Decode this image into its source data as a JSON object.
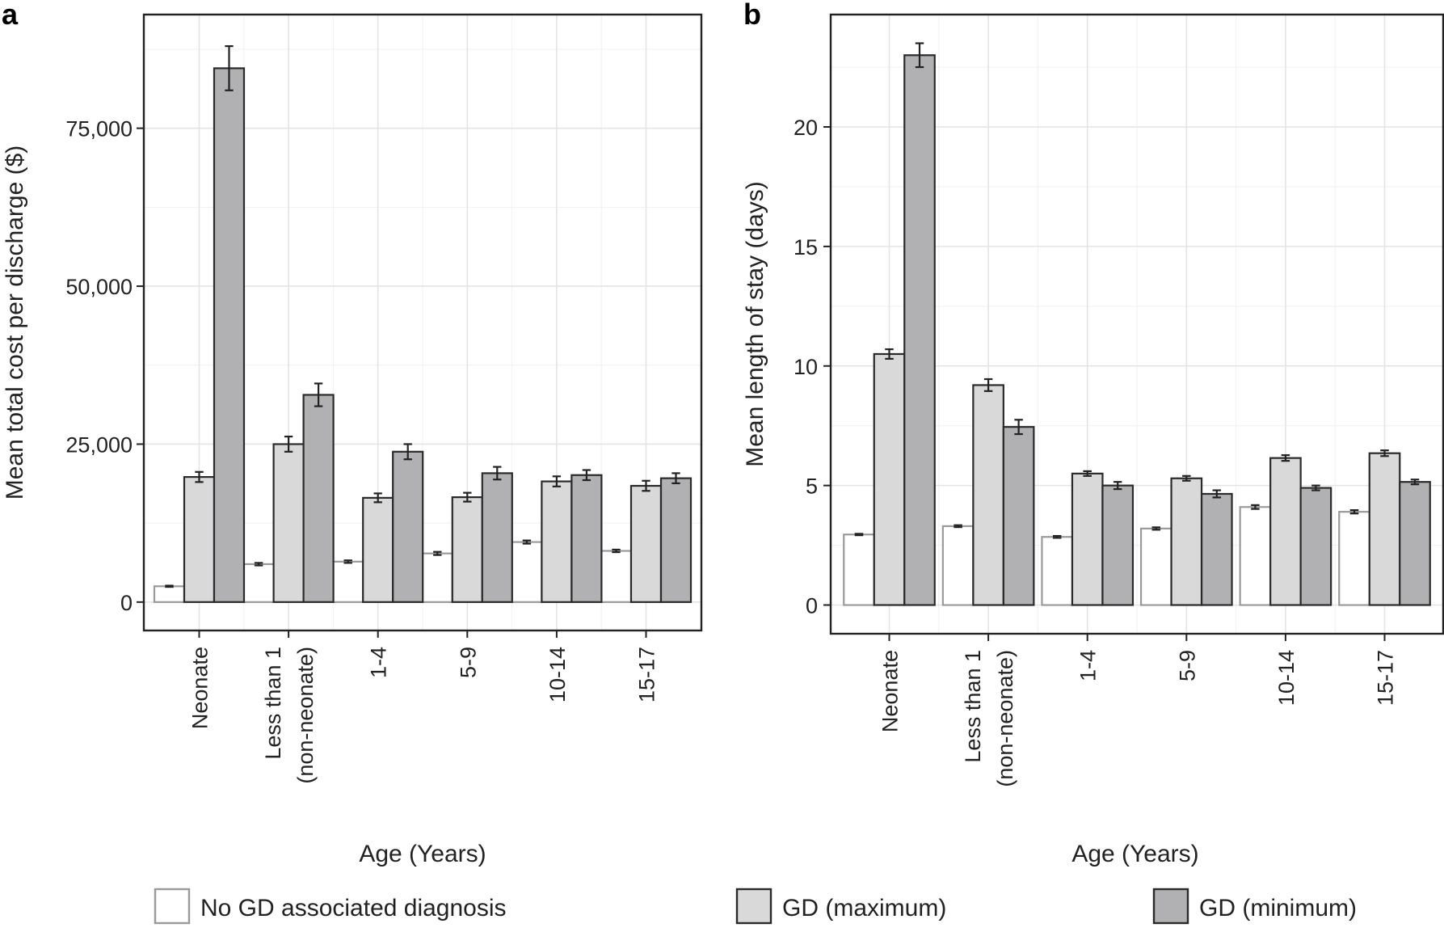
{
  "legend": {
    "items": [
      {
        "label": "No GD associated diagnosis",
        "fill": "#ffffff",
        "stroke": "#9a9a9a"
      },
      {
        "label": "GD (maximum)",
        "fill": "#d9d9da",
        "stroke": "#2a2a2a"
      },
      {
        "label": "GD (minimum)",
        "fill": "#b1b1b4",
        "stroke": "#2a2a2a"
      }
    ]
  },
  "chart_data": [
    {
      "panel": "a",
      "type": "bar",
      "title": "",
      "xlabel": "Age (Years)",
      "ylabel": "Mean total cost per discharge ($)",
      "categories": [
        [
          "Neonate"
        ],
        [
          "Less than 1",
          "(non-neonate)"
        ],
        [
          "1-4"
        ],
        [
          "5-9"
        ],
        [
          "10-14"
        ],
        [
          "15-17"
        ]
      ],
      "ylim": [
        -4500,
        93000
      ],
      "yticks": [
        0,
        25000,
        50000,
        75000
      ],
      "ytick_labels": [
        "0",
        "25,000",
        "50,000",
        "75,000"
      ],
      "series": [
        {
          "name": "No GD associated diagnosis",
          "values": [
            2500,
            6000,
            6400,
            7700,
            9500,
            8100
          ],
          "errors": [
            100,
            200,
            200,
            250,
            250,
            200
          ]
        },
        {
          "name": "GD (maximum)",
          "values": [
            19800,
            25000,
            16500,
            16600,
            19100,
            18400
          ],
          "errors": [
            800,
            1200,
            700,
            700,
            800,
            800
          ]
        },
        {
          "name": "GD (minimum)",
          "values": [
            84500,
            32800,
            23800,
            20400,
            20100,
            19600
          ],
          "errors": [
            3500,
            1800,
            1200,
            1000,
            800,
            800
          ]
        }
      ]
    },
    {
      "panel": "b",
      "type": "bar",
      "title": "",
      "xlabel": "Age (Years)",
      "ylabel": "Mean length of stay (days)",
      "categories": [
        [
          "Neonate"
        ],
        [
          "Less than 1",
          "(non-neonate)"
        ],
        [
          "1-4"
        ],
        [
          "5-9"
        ],
        [
          "10-14"
        ],
        [
          "15-17"
        ]
      ],
      "ylim": [
        -1.2,
        24.7
      ],
      "yticks": [
        0,
        5,
        10,
        15,
        20
      ],
      "ytick_labels": [
        "0",
        "5",
        "10",
        "15",
        "20"
      ],
      "series": [
        {
          "name": "No GD associated diagnosis",
          "values": [
            2.95,
            3.3,
            2.85,
            3.2,
            4.1,
            3.9
          ],
          "errors": [
            0.03,
            0.04,
            0.04,
            0.05,
            0.08,
            0.07
          ]
        },
        {
          "name": "GD (maximum)",
          "values": [
            10.5,
            9.2,
            5.5,
            5.3,
            6.15,
            6.35
          ],
          "errors": [
            0.2,
            0.25,
            0.1,
            0.1,
            0.12,
            0.12
          ]
        },
        {
          "name": "GD (minimum)",
          "values": [
            23.0,
            7.45,
            5.0,
            4.65,
            4.9,
            5.15
          ],
          "errors": [
            0.5,
            0.3,
            0.15,
            0.15,
            0.1,
            0.1
          ]
        }
      ]
    }
  ]
}
